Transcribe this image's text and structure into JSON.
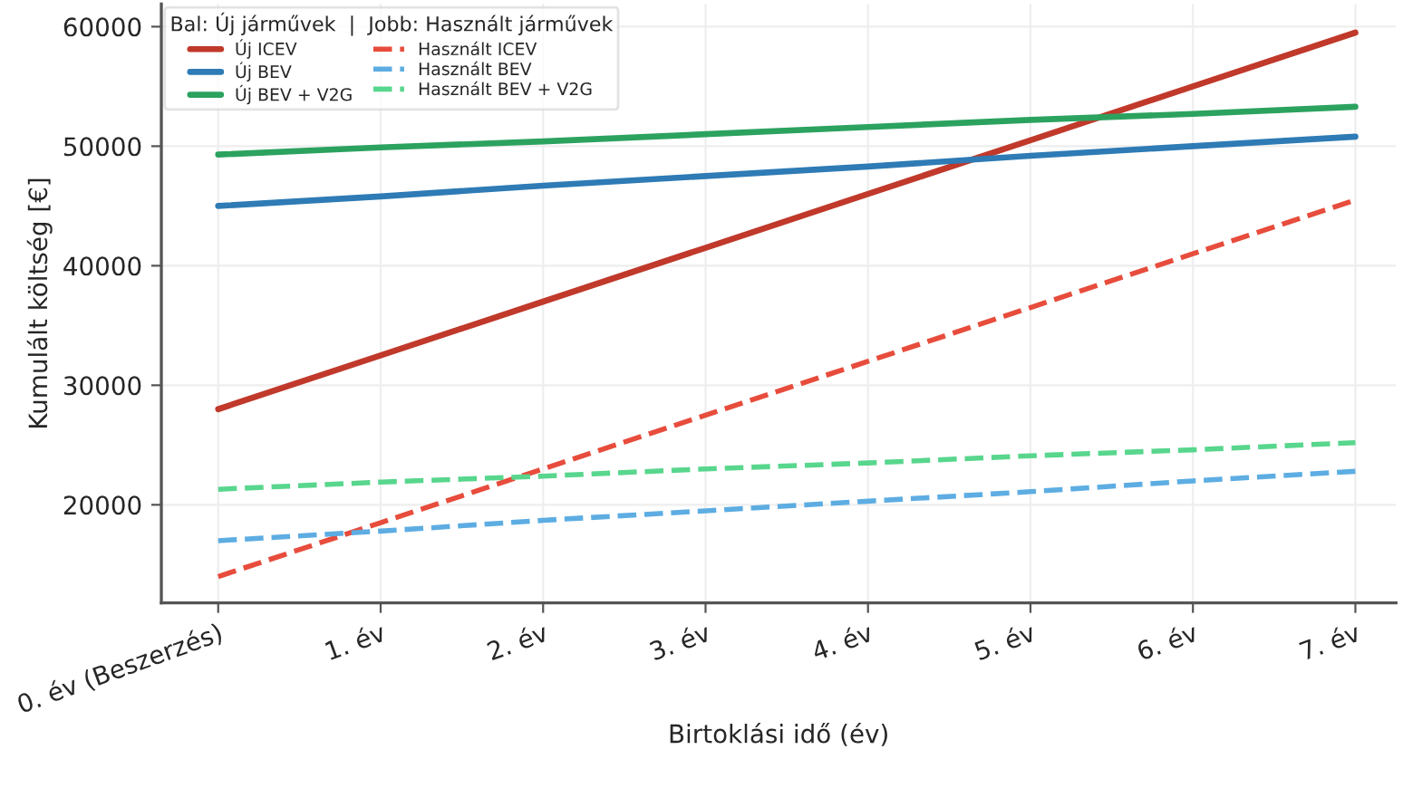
{
  "chart_data": {
    "type": "line",
    "xlabel": "Birtoklási idő (év)",
    "ylabel": "Kumulált költség [€]",
    "legend_title": "Bal: Új járművek  |  Jobb: Használt járművek",
    "categories": [
      "0. év (Beszerzés)",
      "1. év",
      "2. év",
      "3. év",
      "4. év",
      "5. év",
      "6. év",
      "7. év"
    ],
    "series": [
      {
        "name": "Új ICEV",
        "color": "#c0392b",
        "line_style": "solid",
        "values": [
          28000,
          32500,
          37000,
          41500,
          46000,
          50500,
          55000,
          59500
        ]
      },
      {
        "name": "Új BEV",
        "color": "#2e7bb5",
        "line_style": "solid",
        "values": [
          45000,
          45800,
          46700,
          47500,
          48300,
          49200,
          50000,
          50800
        ]
      },
      {
        "name": "Új BEV + V2G",
        "color": "#2ca25f",
        "line_style": "solid",
        "values": [
          49300,
          49900,
          50400,
          51000,
          51600,
          52200,
          52700,
          53300
        ]
      },
      {
        "name": "Használt ICEV",
        "color": "#e74c3c",
        "line_style": "dashed",
        "values": [
          14000,
          18500,
          23000,
          27500,
          32000,
          36500,
          41000,
          45500
        ]
      },
      {
        "name": "Használt BEV",
        "color": "#5dade2",
        "line_style": "dashed",
        "values": [
          17000,
          17800,
          18700,
          19500,
          20300,
          21100,
          22000,
          22800
        ]
      },
      {
        "name": "Használt BEV + V2G",
        "color": "#58d68d",
        "line_style": "dashed",
        "values": [
          21300,
          21900,
          22400,
          23000,
          23500,
          24100,
          24600,
          25200
        ]
      }
    ],
    "ylim": [
      11800,
      61900
    ],
    "yticks": [
      20000,
      30000,
      40000,
      50000,
      60000
    ],
    "grid": true,
    "legend": "top left",
    "marker": "none"
  }
}
